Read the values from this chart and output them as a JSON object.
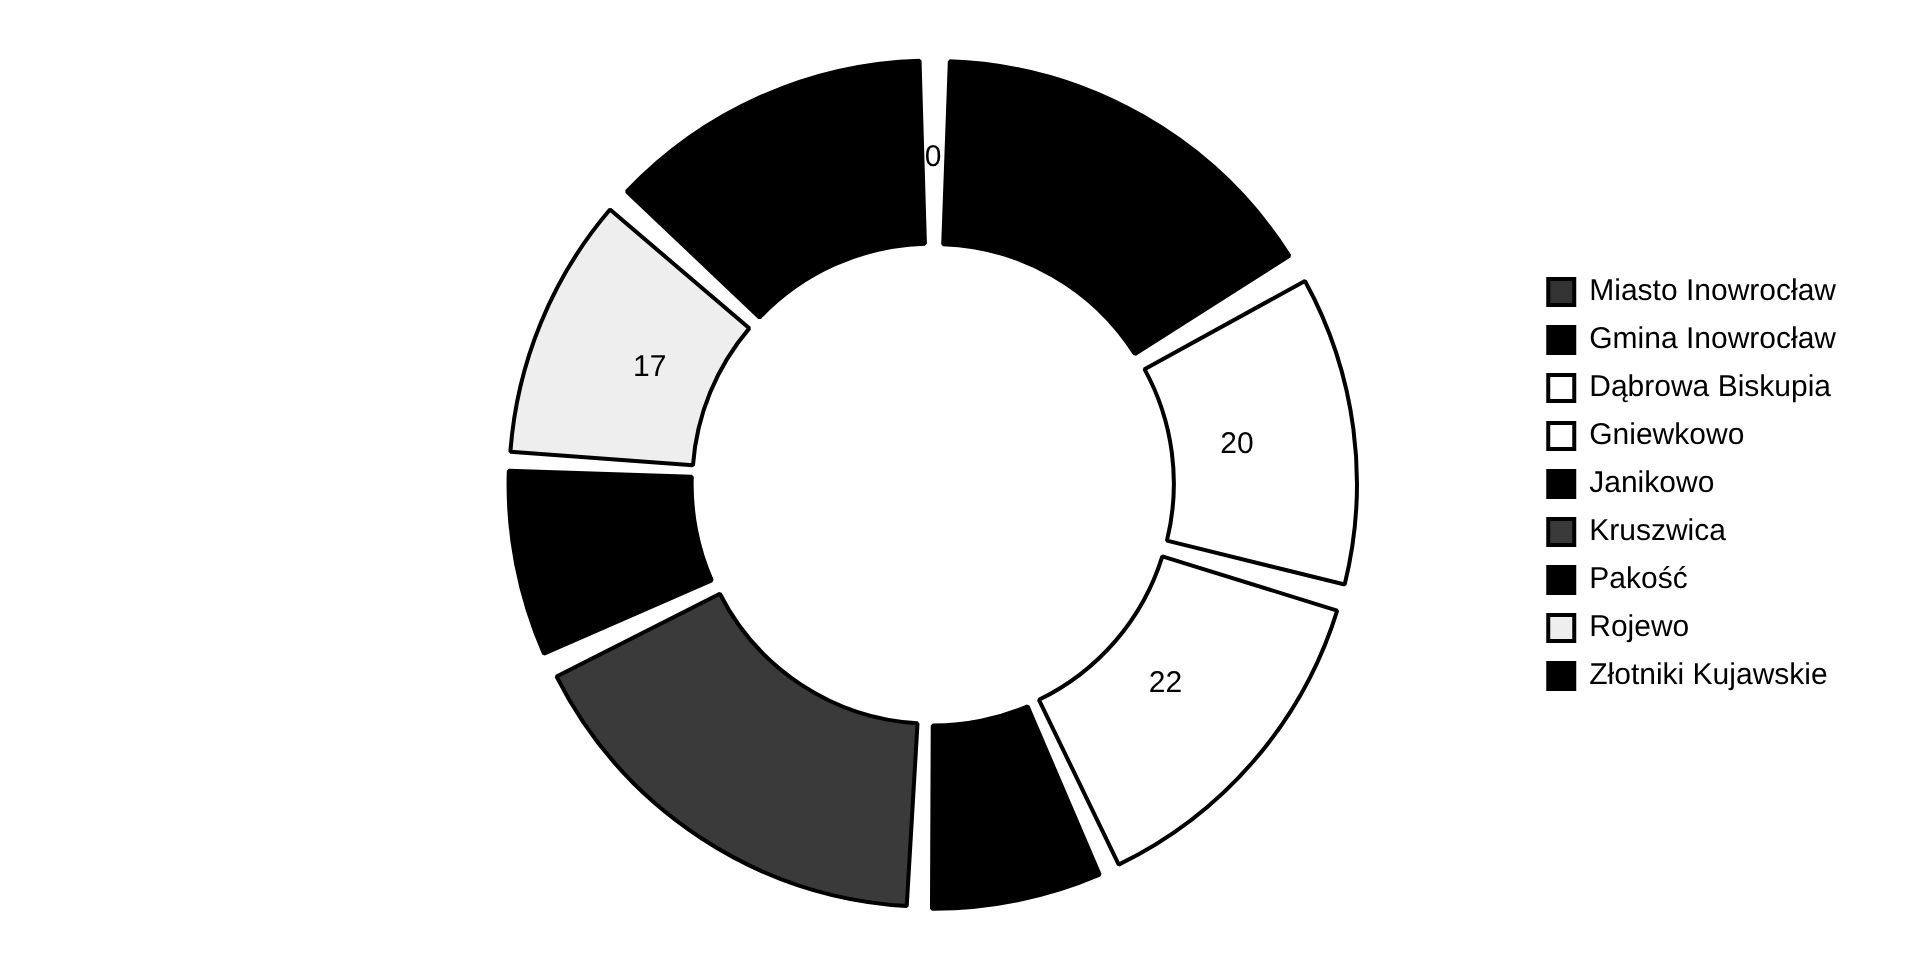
{
  "chart_data": {
    "type": "donut",
    "categories": [
      "Miasto Inowrocław",
      "Gmina Inowrocław",
      "Dąbrowa Biskupia",
      "Gniewkowo",
      "Janikowo",
      "Kruszwica",
      "Pakość",
      "Rojewo",
      "Złotniki Kujawskie"
    ],
    "values": [
      0,
      26,
      20,
      22,
      11,
      28,
      12,
      17,
      21
    ],
    "colors": [
      "#333333",
      "#000000",
      "#ffffff",
      "#ffffff",
      "#000000",
      "#3a3a3a",
      "#000000",
      "#eeeeee",
      "#000000"
    ],
    "value_labels": [
      "0",
      null,
      "20",
      "22",
      null,
      null,
      null,
      "17",
      null
    ],
    "legend": "right"
  }
}
